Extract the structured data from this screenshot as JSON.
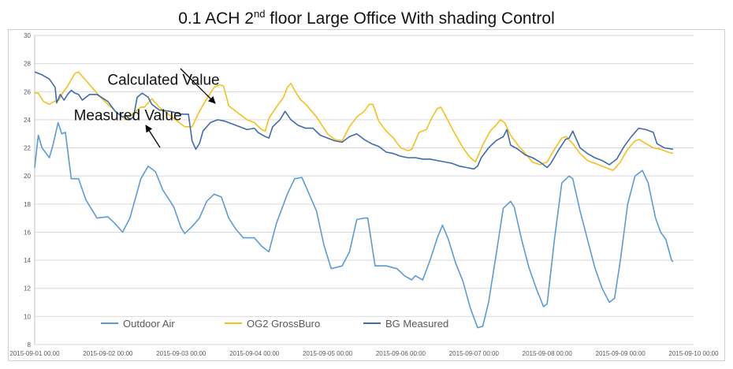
{
  "chart_data": {
    "type": "line",
    "title_main": "0.1 ACH 2",
    "title_sup": "nd",
    "title_rest": " floor Large Office With shading Control",
    "xlabel": "",
    "ylabel": "",
    "ylim": [
      8,
      30
    ],
    "yticks": [
      8,
      10,
      12,
      14,
      16,
      18,
      20,
      22,
      24,
      26,
      28,
      30
    ],
    "xlim": [
      0,
      9
    ],
    "xticks": [
      {
        "x": 0,
        "label": "2015-09-01 00:00"
      },
      {
        "x": 1,
        "label": "2015-09-02 00:00"
      },
      {
        "x": 2,
        "label": "2015-09-03 00:00"
      },
      {
        "x": 3,
        "label": "2015-09-04 00:00"
      },
      {
        "x": 4,
        "label": "2015-09-05 00:00"
      },
      {
        "x": 5,
        "label": "2015-09-06 00:00"
      },
      {
        "x": 6,
        "label": "2015-09-07 00:00"
      },
      {
        "x": 7,
        "label": "2015-09-08 00:00"
      },
      {
        "x": 8,
        "label": "2015-09-09 00:00"
      },
      {
        "x": 9,
        "label": "2015-09-10 00:00"
      }
    ],
    "grid": "horizontal",
    "legend_position": "bottom-left",
    "annotations": [
      {
        "text": "Calculated Value",
        "x": 1.76,
        "y": 26.5
      },
      {
        "text": "Measured Value",
        "x": 1.4,
        "y": 24.2
      }
    ],
    "series": [
      {
        "name": "Outdoor Air",
        "color": "#5b9bd5",
        "points": [
          [
            0,
            20.6
          ],
          [
            0.05,
            22.9
          ],
          [
            0.1,
            22.0
          ],
          [
            0.2,
            21.3
          ],
          [
            0.25,
            22.2
          ],
          [
            0.32,
            23.8
          ],
          [
            0.37,
            23.0
          ],
          [
            0.42,
            23.1
          ],
          [
            0.5,
            19.8
          ],
          [
            0.6,
            19.8
          ],
          [
            0.7,
            18.3
          ],
          [
            0.85,
            17.0
          ],
          [
            1.0,
            17.1
          ],
          [
            1.1,
            16.6
          ],
          [
            1.2,
            16.0
          ],
          [
            1.3,
            17.0
          ],
          [
            1.45,
            19.8
          ],
          [
            1.55,
            20.7
          ],
          [
            1.65,
            20.3
          ],
          [
            1.75,
            19.0
          ],
          [
            1.9,
            17.8
          ],
          [
            2.0,
            16.3
          ],
          [
            2.05,
            15.9
          ],
          [
            2.15,
            16.4
          ],
          [
            2.25,
            17.0
          ],
          [
            2.35,
            18.2
          ],
          [
            2.45,
            18.7
          ],
          [
            2.55,
            18.5
          ],
          [
            2.65,
            17.0
          ],
          [
            2.75,
            16.2
          ],
          [
            2.85,
            15.6
          ],
          [
            3.0,
            15.6
          ],
          [
            3.1,
            15.0
          ],
          [
            3.2,
            14.6
          ],
          [
            3.3,
            16.6
          ],
          [
            3.45,
            18.7
          ],
          [
            3.55,
            19.8
          ],
          [
            3.65,
            19.9
          ],
          [
            3.75,
            18.7
          ],
          [
            3.85,
            17.5
          ],
          [
            3.95,
            15.1
          ],
          [
            4.05,
            13.4
          ],
          [
            4.2,
            13.6
          ],
          [
            4.3,
            14.6
          ],
          [
            4.4,
            16.9
          ],
          [
            4.5,
            17.0
          ],
          [
            4.55,
            17.0
          ],
          [
            4.65,
            13.6
          ],
          [
            4.8,
            13.6
          ],
          [
            4.95,
            13.4
          ],
          [
            5.05,
            12.9
          ],
          [
            5.15,
            12.6
          ],
          [
            5.2,
            12.9
          ],
          [
            5.3,
            12.6
          ],
          [
            5.4,
            14.0
          ],
          [
            5.5,
            15.6
          ],
          [
            5.57,
            16.5
          ],
          [
            5.65,
            15.5
          ],
          [
            5.75,
            13.8
          ],
          [
            5.85,
            12.5
          ],
          [
            5.95,
            10.6
          ],
          [
            6.05,
            9.2
          ],
          [
            6.12,
            9.3
          ],
          [
            6.2,
            11.0
          ],
          [
            6.3,
            14.3
          ],
          [
            6.4,
            17.7
          ],
          [
            6.5,
            18.2
          ],
          [
            6.55,
            17.8
          ],
          [
            6.65,
            15.5
          ],
          [
            6.75,
            13.5
          ],
          [
            6.85,
            12.0
          ],
          [
            6.95,
            10.7
          ],
          [
            7.0,
            10.9
          ],
          [
            7.1,
            15.5
          ],
          [
            7.2,
            19.5
          ],
          [
            7.3,
            20.0
          ],
          [
            7.35,
            19.8
          ],
          [
            7.45,
            17.5
          ],
          [
            7.55,
            15.5
          ],
          [
            7.65,
            13.5
          ],
          [
            7.75,
            12.0
          ],
          [
            7.85,
            11.0
          ],
          [
            7.92,
            11.3
          ],
          [
            8.0,
            14.0
          ],
          [
            8.1,
            18.0
          ],
          [
            8.2,
            20.0
          ],
          [
            8.3,
            20.4
          ],
          [
            8.38,
            19.5
          ],
          [
            8.48,
            17.0
          ],
          [
            8.55,
            16.0
          ],
          [
            8.62,
            15.5
          ],
          [
            8.7,
            14.0
          ],
          [
            8.72,
            13.9
          ]
        ]
      },
      {
        "name": "OG2 GrossBuro",
        "color": "#f2c11c",
        "points": [
          [
            0,
            25.9
          ],
          [
            0.05,
            25.9
          ],
          [
            0.12,
            25.3
          ],
          [
            0.2,
            25.1
          ],
          [
            0.27,
            25.3
          ],
          [
            0.33,
            25.4
          ],
          [
            0.38,
            25.9
          ],
          [
            0.45,
            26.4
          ],
          [
            0.55,
            27.3
          ],
          [
            0.6,
            27.4
          ],
          [
            0.7,
            26.8
          ],
          [
            0.8,
            26.2
          ],
          [
            0.9,
            25.6
          ],
          [
            1.0,
            25.1
          ],
          [
            1.15,
            24.4
          ],
          [
            1.25,
            24.0
          ],
          [
            1.35,
            24.5
          ],
          [
            1.45,
            24.9
          ],
          [
            1.5,
            24.9
          ],
          [
            1.6,
            25.5
          ],
          [
            1.7,
            24.9
          ],
          [
            1.85,
            24.3
          ],
          [
            1.95,
            23.9
          ],
          [
            2.05,
            23.5
          ],
          [
            2.15,
            23.5
          ],
          [
            2.25,
            24.6
          ],
          [
            2.35,
            25.5
          ],
          [
            2.45,
            26.3
          ],
          [
            2.52,
            26.5
          ],
          [
            2.58,
            26.4
          ],
          [
            2.65,
            25.0
          ],
          [
            2.75,
            24.6
          ],
          [
            2.9,
            24.0
          ],
          [
            3.0,
            23.8
          ],
          [
            3.1,
            23.3
          ],
          [
            3.15,
            23.2
          ],
          [
            3.2,
            24.1
          ],
          [
            3.3,
            24.9
          ],
          [
            3.4,
            25.6
          ],
          [
            3.45,
            26.3
          ],
          [
            3.5,
            26.6
          ],
          [
            3.55,
            26.1
          ],
          [
            3.62,
            25.5
          ],
          [
            3.72,
            25.0
          ],
          [
            3.85,
            24.2
          ],
          [
            4.0,
            23.0
          ],
          [
            4.1,
            22.6
          ],
          [
            4.2,
            22.5
          ],
          [
            4.3,
            23.5
          ],
          [
            4.4,
            24.2
          ],
          [
            4.5,
            24.6
          ],
          [
            4.57,
            25.1
          ],
          [
            4.62,
            25.1
          ],
          [
            4.7,
            23.9
          ],
          [
            4.8,
            23.2
          ],
          [
            4.9,
            22.7
          ],
          [
            5.0,
            22.0
          ],
          [
            5.1,
            21.8
          ],
          [
            5.15,
            21.9
          ],
          [
            5.25,
            23.1
          ],
          [
            5.35,
            23.3
          ],
          [
            5.42,
            24.1
          ],
          [
            5.5,
            24.8
          ],
          [
            5.55,
            24.9
          ],
          [
            5.62,
            24.2
          ],
          [
            5.72,
            23.2
          ],
          [
            5.85,
            22.0
          ],
          [
            5.95,
            21.3
          ],
          [
            6.02,
            21.0
          ],
          [
            6.12,
            22.2
          ],
          [
            6.22,
            23.2
          ],
          [
            6.3,
            23.6
          ],
          [
            6.36,
            24.0
          ],
          [
            6.42,
            23.8
          ],
          [
            6.5,
            22.9
          ],
          [
            6.6,
            22.2
          ],
          [
            6.7,
            21.6
          ],
          [
            6.8,
            21.0
          ],
          [
            6.9,
            20.8
          ],
          [
            7.0,
            21.0
          ],
          [
            7.1,
            21.9
          ],
          [
            7.2,
            22.7
          ],
          [
            7.26,
            22.8
          ],
          [
            7.35,
            22.3
          ],
          [
            7.45,
            21.6
          ],
          [
            7.55,
            21.1
          ],
          [
            7.65,
            20.9
          ],
          [
            7.8,
            20.6
          ],
          [
            7.9,
            20.4
          ],
          [
            8.0,
            21.0
          ],
          [
            8.1,
            21.9
          ],
          [
            8.2,
            22.5
          ],
          [
            8.26,
            22.6
          ],
          [
            8.35,
            22.3
          ],
          [
            8.45,
            22.0
          ],
          [
            8.55,
            21.9
          ],
          [
            8.65,
            21.7
          ],
          [
            8.72,
            21.6
          ]
        ]
      },
      {
        "name": "BG Measured",
        "color": "#3d6bb0",
        "points": [
          [
            0,
            27.4
          ],
          [
            0.1,
            27.2
          ],
          [
            0.2,
            26.9
          ],
          [
            0.28,
            26.3
          ],
          [
            0.3,
            25.2
          ],
          [
            0.35,
            25.8
          ],
          [
            0.4,
            25.4
          ],
          [
            0.45,
            25.8
          ],
          [
            0.5,
            26.1
          ],
          [
            0.55,
            25.9
          ],
          [
            0.6,
            25.8
          ],
          [
            0.65,
            25.4
          ],
          [
            0.75,
            25.8
          ],
          [
            0.85,
            25.8
          ],
          [
            1.0,
            25.3
          ],
          [
            1.1,
            24.6
          ],
          [
            1.2,
            24.2
          ],
          [
            1.25,
            24.3
          ],
          [
            1.3,
            24.0
          ],
          [
            1.35,
            24.2
          ],
          [
            1.4,
            25.6
          ],
          [
            1.47,
            25.9
          ],
          [
            1.55,
            25.6
          ],
          [
            1.6,
            25.1
          ],
          [
            1.7,
            24.7
          ],
          [
            1.85,
            24.6
          ],
          [
            2.0,
            24.4
          ],
          [
            2.1,
            24.4
          ],
          [
            2.15,
            22.5
          ],
          [
            2.2,
            21.9
          ],
          [
            2.25,
            22.3
          ],
          [
            2.3,
            23.2
          ],
          [
            2.4,
            23.8
          ],
          [
            2.5,
            24.0
          ],
          [
            2.6,
            23.9
          ],
          [
            2.7,
            23.7
          ],
          [
            2.8,
            23.5
          ],
          [
            2.9,
            23.3
          ],
          [
            3.0,
            23.4
          ],
          [
            3.05,
            23.1
          ],
          [
            3.15,
            22.8
          ],
          [
            3.2,
            22.7
          ],
          [
            3.25,
            23.5
          ],
          [
            3.35,
            24.0
          ],
          [
            3.42,
            24.6
          ],
          [
            3.5,
            24.0
          ],
          [
            3.6,
            23.6
          ],
          [
            3.7,
            23.4
          ],
          [
            3.8,
            23.4
          ],
          [
            3.9,
            22.9
          ],
          [
            4.0,
            22.7
          ],
          [
            4.1,
            22.5
          ],
          [
            4.2,
            22.4
          ],
          [
            4.3,
            22.8
          ],
          [
            4.4,
            23.0
          ],
          [
            4.5,
            22.6
          ],
          [
            4.6,
            22.3
          ],
          [
            4.7,
            22.1
          ],
          [
            4.8,
            21.7
          ],
          [
            4.9,
            21.6
          ],
          [
            5.0,
            21.4
          ],
          [
            5.1,
            21.3
          ],
          [
            5.2,
            21.3
          ],
          [
            5.3,
            21.2
          ],
          [
            5.4,
            21.2
          ],
          [
            5.5,
            21.1
          ],
          [
            5.6,
            21.0
          ],
          [
            5.7,
            20.9
          ],
          [
            5.8,
            20.7
          ],
          [
            5.9,
            20.6
          ],
          [
            6.0,
            20.5
          ],
          [
            6.05,
            20.7
          ],
          [
            6.1,
            21.3
          ],
          [
            6.2,
            22.0
          ],
          [
            6.3,
            22.5
          ],
          [
            6.4,
            22.8
          ],
          [
            6.45,
            23.3
          ],
          [
            6.5,
            22.2
          ],
          [
            6.6,
            21.9
          ],
          [
            6.7,
            21.5
          ],
          [
            6.8,
            21.3
          ],
          [
            6.9,
            21.0
          ],
          [
            7.0,
            20.6
          ],
          [
            7.05,
            20.9
          ],
          [
            7.15,
            21.8
          ],
          [
            7.25,
            22.6
          ],
          [
            7.3,
            22.7
          ],
          [
            7.35,
            23.2
          ],
          [
            7.45,
            22.0
          ],
          [
            7.55,
            21.6
          ],
          [
            7.65,
            21.3
          ],
          [
            7.75,
            21.1
          ],
          [
            7.85,
            20.8
          ],
          [
            7.95,
            21.2
          ],
          [
            8.05,
            22.1
          ],
          [
            8.15,
            22.8
          ],
          [
            8.25,
            23.4
          ],
          [
            8.35,
            23.3
          ],
          [
            8.45,
            23.1
          ],
          [
            8.5,
            22.3
          ],
          [
            8.6,
            22.0
          ],
          [
            8.72,
            21.9
          ]
        ]
      }
    ]
  }
}
